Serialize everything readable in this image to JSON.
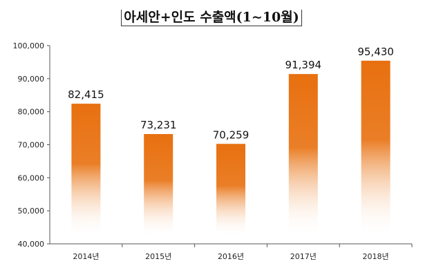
{
  "chart_data": {
    "type": "bar",
    "title": "아세안+인도 수출액(1~10월)",
    "xlabel": "",
    "ylabel": "",
    "categories": [
      "2014년",
      "2015년",
      "2016년",
      "2017년",
      "2018년"
    ],
    "values": [
      82415,
      73231,
      70259,
      91394,
      95430
    ],
    "value_labels": [
      "82,415",
      "73,231",
      "70,259",
      "91,394",
      "95,430"
    ],
    "ylim": [
      40000,
      100000
    ],
    "yticks": [
      "40,000",
      "50,000",
      "60,000",
      "70,000",
      "80,000",
      "90,000",
      "100,000"
    ],
    "grid": false,
    "legend": "none",
    "bar_color": "#e8700f",
    "bar_fade_color": "#ffffff"
  }
}
